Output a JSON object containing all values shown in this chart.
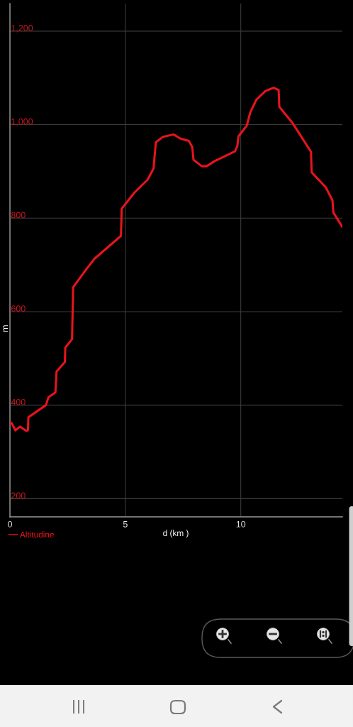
{
  "chart_data": {
    "type": "line",
    "xlabel": "d (km )",
    "ylabel": "m",
    "x": [
      0,
      0.08,
      0.24,
      0.44,
      0.7,
      0.78,
      0.8,
      1.56,
      1.67,
      1.97,
      2.02,
      2.38,
      2.4,
      2.69,
      2.74,
      3.3,
      3.66,
      4.81,
      4.84,
      5.4,
      5.96,
      6.22,
      6.32,
      6.63,
      7.09,
      7.39,
      7.75,
      7.9,
      7.95,
      8.31,
      8.52,
      8.87,
      9.75,
      9.85,
      9.9,
      10.26,
      10.41,
      10.67,
      11.07,
      11.43,
      11.64,
      11.67,
      12.25,
      13.04,
      13.07,
      13.68,
      13.97,
      14.01,
      14.4
    ],
    "series": [
      {
        "name": "Altitudine",
        "color": "#e8141b",
        "values": [
          364,
          361,
          346,
          354,
          345,
          346,
          374,
          400,
          417,
          427,
          472,
          492,
          523,
          541,
          652,
          690,
          713,
          762,
          820,
          855,
          882,
          906,
          962,
          974,
          979,
          970,
          965,
          952,
          925,
          911,
          911,
          922,
          943,
          954,
          975,
          998,
          1026,
          1053,
          1072,
          1079,
          1074,
          1038,
          1003,
          942,
          898,
          866,
          838,
          812,
          781
        ]
      }
    ],
    "xlim": [
      0,
      14.4
    ],
    "ylim": [
      161,
      1259
    ],
    "xticks": [
      0,
      5,
      10
    ],
    "yticks": [
      200,
      400,
      600,
      800,
      {
        "value": 1000,
        "label": "1,000"
      },
      {
        "value": 1200,
        "label": "1,200"
      }
    ],
    "grid": true,
    "legend": "bottom left",
    "line_style": "solid"
  }
}
